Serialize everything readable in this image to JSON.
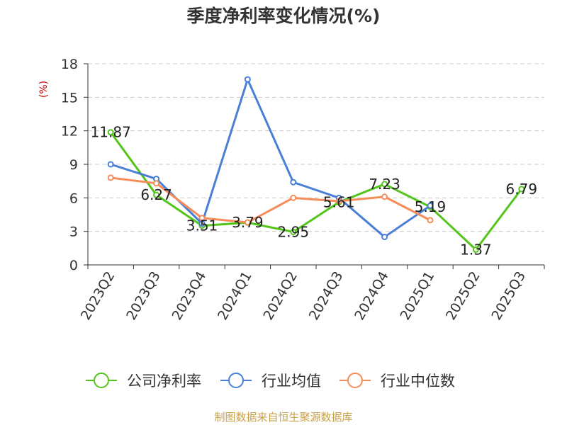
{
  "source_note": "制图数据来自恒生聚源数据库",
  "colors": {
    "grid": "#cccccc",
    "axis": "#333333"
  },
  "chart_data": {
    "type": "line",
    "title": "季度净利率变化情况(%)",
    "ylabel": "(%)",
    "xlabel": "",
    "ylim": [
      0,
      18
    ],
    "yticks": [
      0,
      3,
      6,
      9,
      12,
      15,
      18
    ],
    "grid": "horizontal-dashed",
    "legend_position": "bottom",
    "categories": [
      "2023Q2",
      "2023Q3",
      "2023Q4",
      "2024Q1",
      "2024Q2",
      "2024Q3",
      "2024Q4",
      "2025Q1",
      "2025Q2",
      "2025Q3"
    ],
    "series": [
      {
        "name": "公司净利率",
        "color": "#52c41a",
        "values": [
          11.87,
          6.27,
          3.51,
          3.79,
          2.95,
          5.61,
          7.23,
          5.19,
          1.37,
          6.79
        ],
        "data_labels": [
          "11.87",
          "6.27",
          "3.51",
          "3.79",
          "2.95",
          "5.61",
          "7.23",
          "5.19",
          "1.37",
          "6.79"
        ]
      },
      {
        "name": "行业均值",
        "color": "#4a7fd8",
        "values": [
          9.0,
          7.7,
          3.7,
          16.6,
          7.4,
          6.0,
          2.5,
          5.3,
          null,
          null
        ]
      },
      {
        "name": "行业中位数",
        "color": "#f58c5a",
        "values": [
          7.8,
          7.3,
          4.2,
          3.8,
          6.0,
          5.7,
          6.1,
          4.0,
          null,
          null
        ]
      }
    ]
  }
}
